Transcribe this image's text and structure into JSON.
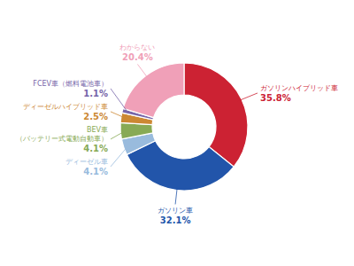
{
  "chart_data": {
    "type": "donut",
    "categories": [
      "ガソリンハイブリッド車",
      "ガソリン車",
      "ディーゼル車",
      "BEV車\n（バッテリー式電動自動車）",
      "ディーゼルハイブリッド車",
      "FCEV車（燃料電池車）",
      "わからない"
    ],
    "values": [
      35.8,
      32.1,
      4.1,
      4.1,
      2.5,
      1.1,
      20.4
    ],
    "value_labels": [
      "35.8%",
      "32.1%",
      "4.1%",
      "4.1%",
      "2.5%",
      "1.1%",
      "20.4%"
    ],
    "colors": [
      "#cc2233",
      "#2255aa",
      "#99bbdd",
      "#88aa55",
      "#cc8833",
      "#7766aa",
      "#f0a0b8"
    ]
  }
}
